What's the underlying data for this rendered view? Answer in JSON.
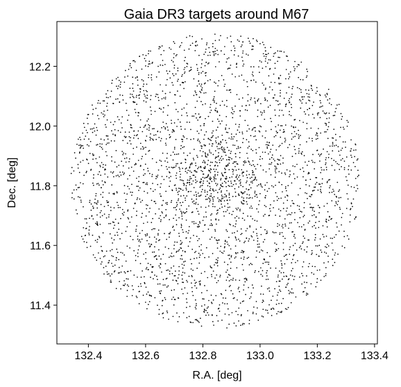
{
  "chart_data": {
    "type": "scatter",
    "title": "Gaia DR3 targets around M67",
    "xlabel": "R.A. [deg]",
    "ylabel": "Dec. [deg]",
    "xlim": [
      132.29,
      133.41
    ],
    "ylim": [
      11.27,
      12.35
    ],
    "xticks": [
      "132.4",
      "132.6",
      "132.8",
      "133.0",
      "133.2",
      "133.4"
    ],
    "yticks": [
      "11.4",
      "11.6",
      "11.8",
      "12.0",
      "12.2"
    ],
    "grid": false,
    "legend": "none",
    "marker_color": "#000000",
    "field": {
      "shape": "circle",
      "center_ra": 132.845,
      "center_dec": 11.815,
      "radius_dec_deg": 0.495,
      "n_points": 3200,
      "cluster_core_fraction": 0.1,
      "cluster_core_sigma_deg": 0.07
    }
  }
}
